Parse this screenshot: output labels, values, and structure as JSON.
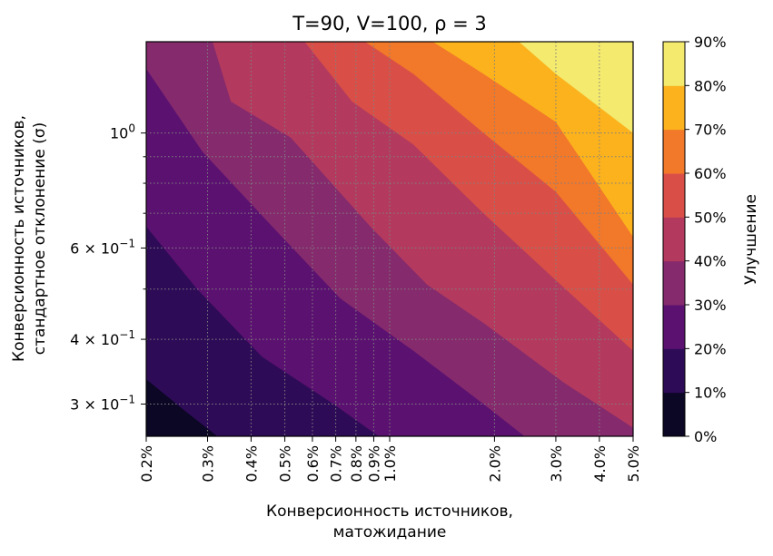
{
  "chart_data": {
    "type": "contourf",
    "title": "T=90, V=100, ρ = 3",
    "xlabel": [
      "Конверсионность источников,",
      "матожидание"
    ],
    "ylabel": [
      "Конверсионность источников,",
      "стандартное отклонение (σ)"
    ],
    "x_scale": "log",
    "y_scale": "log",
    "xlim": [
      0.002,
      0.05
    ],
    "ylim": [
      0.26,
      1.5
    ],
    "x_ticks": [
      {
        "value": 0.002,
        "label": "0.2%"
      },
      {
        "value": 0.003,
        "label": "0.3%"
      },
      {
        "value": 0.004,
        "label": "0.4%"
      },
      {
        "value": 0.005,
        "label": "0.5%"
      },
      {
        "value": 0.006,
        "label": "0.6%"
      },
      {
        "value": 0.007,
        "label": "0.7%"
      },
      {
        "value": 0.008,
        "label": "0.8%"
      },
      {
        "value": 0.009,
        "label": "0.9%"
      },
      {
        "value": 0.01,
        "label": "1.0%"
      },
      {
        "value": 0.02,
        "label": "2.0%"
      },
      {
        "value": 0.03,
        "label": "3.0%"
      },
      {
        "value": 0.04,
        "label": "4.0%"
      },
      {
        "value": 0.05,
        "label": "5.0%"
      }
    ],
    "y_ticks": [
      {
        "value": 0.3,
        "label": "3 × 10⁻¹",
        "mant": "3 × 10",
        "exp": "−1"
      },
      {
        "value": 0.4,
        "label": "4 × 10⁻¹",
        "mant": "4 × 10",
        "exp": "−1"
      },
      {
        "value": 0.6,
        "label": "6 × 10⁻¹",
        "mant": "6 × 10",
        "exp": "−1"
      },
      {
        "value": 1.0,
        "label": "10⁰",
        "mant": "10",
        "exp": "0"
      }
    ],
    "y_minor_ticks": [
      0.5,
      0.7,
      0.8,
      0.9
    ],
    "grid": true,
    "colorbar": {
      "label": "Улучшение",
      "levels": [
        0,
        10,
        20,
        30,
        40,
        50,
        60,
        70,
        80,
        90
      ],
      "tick_labels": [
        "0%",
        "10%",
        "20%",
        "30%",
        "40%",
        "50%",
        "60%",
        "70%",
        "80%",
        "90%"
      ],
      "colors": [
        "#0b0724",
        "#2e0b57",
        "#5b1170",
        "#852a6d",
        "#b33a5e",
        "#d94f47",
        "#f2782a",
        "#fbb21d",
        "#f3ea6e"
      ]
    },
    "contour_boundaries": [
      {
        "level": 10,
        "points": [
          [
            0.002,
            0.335
          ],
          [
            0.0026,
            0.29
          ],
          [
            0.0032,
            0.26
          ]
        ]
      },
      {
        "level": 20,
        "points": [
          [
            0.002,
            0.66
          ],
          [
            0.0028,
            0.5
          ],
          [
            0.0043,
            0.37
          ],
          [
            0.0069,
            0.3
          ],
          [
            0.0093,
            0.26
          ]
        ]
      },
      {
        "level": 30,
        "points": [
          [
            0.002,
            1.33
          ],
          [
            0.0029,
            0.92
          ],
          [
            0.0046,
            0.66
          ],
          [
            0.0072,
            0.48
          ],
          [
            0.0117,
            0.38
          ],
          [
            0.0186,
            0.3
          ],
          [
            0.0244,
            0.26
          ]
        ]
      },
      {
        "level": 40,
        "points": [
          [
            0.0031,
            1.5
          ],
          [
            0.0035,
            1.15
          ],
          [
            0.0052,
            0.98
          ],
          [
            0.0088,
            0.66
          ],
          [
            0.0128,
            0.51
          ],
          [
            0.0186,
            0.43
          ],
          [
            0.0316,
            0.33
          ],
          [
            0.05,
            0.27
          ]
        ]
      },
      {
        "level": 50,
        "points": [
          [
            0.0057,
            1.5
          ],
          [
            0.0078,
            1.15
          ],
          [
            0.0117,
            0.95
          ],
          [
            0.0186,
            0.7
          ],
          [
            0.03,
            0.52
          ],
          [
            0.05,
            0.38
          ]
        ]
      },
      {
        "level": 60,
        "points": [
          [
            0.0085,
            1.5
          ],
          [
            0.0117,
            1.3
          ],
          [
            0.0186,
            1.0
          ],
          [
            0.03,
            0.77
          ],
          [
            0.05,
            0.51
          ]
        ]
      },
      {
        "level": 70,
        "points": [
          [
            0.0133,
            1.5
          ],
          [
            0.0186,
            1.3
          ],
          [
            0.03,
            1.05
          ],
          [
            0.05,
            0.63
          ]
        ]
      },
      {
        "level": 80,
        "points": [
          [
            0.0235,
            1.5
          ],
          [
            0.03,
            1.3
          ],
          [
            0.05,
            1.0
          ]
        ]
      },
      {
        "level": 90,
        "points": [
          [
            0.038,
            1.5
          ],
          [
            0.041,
            1.3
          ],
          [
            0.05,
            1.06
          ]
        ]
      }
    ]
  }
}
